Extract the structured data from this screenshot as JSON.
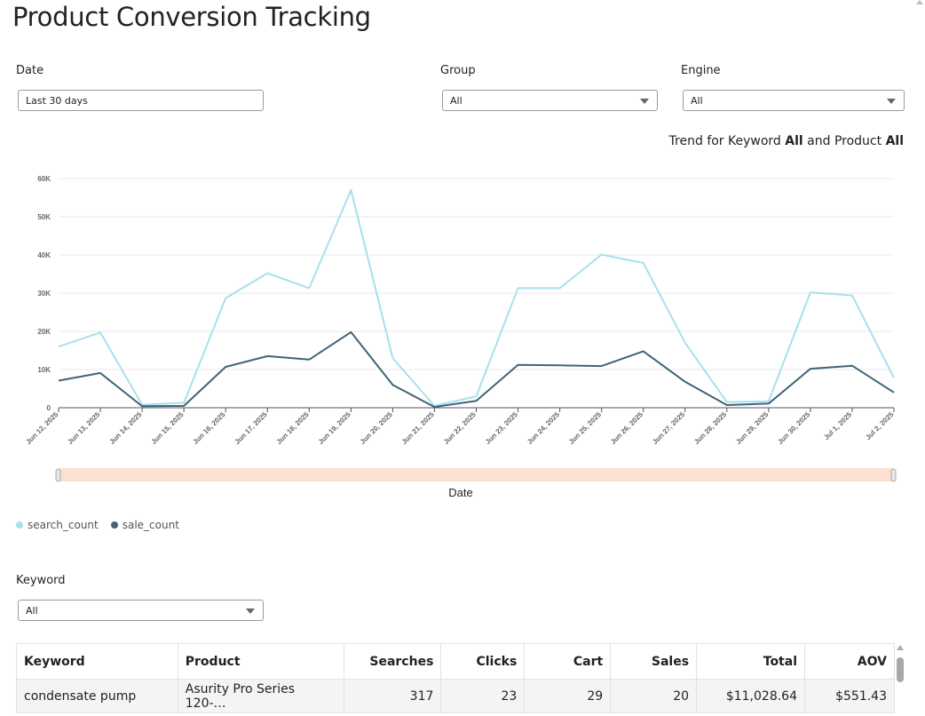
{
  "page": {
    "title": "Product Conversion Tracking"
  },
  "filters": {
    "date": {
      "label": "Date",
      "value": "Last 30 days"
    },
    "group": {
      "label": "Group",
      "value": "All"
    },
    "engine": {
      "label": "Engine",
      "value": "All"
    },
    "keyword": {
      "label": "Keyword",
      "value": "All"
    }
  },
  "trend": {
    "prefix": "Trend for Keyword ",
    "keyword": "All",
    "middle": " and Product ",
    "product": "All"
  },
  "chart_data": {
    "type": "line",
    "xlabel": "Date",
    "ylabel": "",
    "ylim": [
      0,
      60000
    ],
    "yticks": [
      0,
      10000,
      20000,
      30000,
      40000,
      50000,
      60000
    ],
    "ytick_labels": [
      "0",
      "10K",
      "20K",
      "30K",
      "40K",
      "50K",
      "60K"
    ],
    "grid": true,
    "legend": "bottom-left",
    "categories": [
      "Jun 12, 2025",
      "Jun 13, 2025",
      "Jun 14, 2025",
      "Jun 15, 2025",
      "Jun 16, 2025",
      "Jun 17, 2025",
      "Jun 18, 2025",
      "Jun 19, 2025",
      "Jun 20, 2025",
      "Jun 21, 2025",
      "Jun 22, 2025",
      "Jun 23, 2025",
      "Jun 24, 2025",
      "Jun 25, 2025",
      "Jun 26, 2025",
      "Jun 27, 2025",
      "Jun 28, 2025",
      "Jun 29, 2025",
      "Jun 30, 2025",
      "Jul 1, 2025",
      "Jul 2, 2025"
    ],
    "series": [
      {
        "name": "search_count",
        "color": "#a8e0ec",
        "values": [
          16000,
          19700,
          800,
          1300,
          28700,
          35200,
          31300,
          57000,
          13000,
          500,
          3000,
          31300,
          31300,
          40100,
          37900,
          17000,
          1500,
          1700,
          30200,
          29400,
          7800
        ]
      },
      {
        "name": "sale_count",
        "color": "#3f6476",
        "values": [
          7100,
          9100,
          400,
          500,
          10700,
          13500,
          12600,
          19800,
          6000,
          200,
          1800,
          11200,
          11100,
          10900,
          14800,
          6800,
          700,
          1100,
          10200,
          11000,
          4000
        ]
      }
    ]
  },
  "table": {
    "columns": [
      "Keyword",
      "Product",
      "Searches",
      "Clicks",
      "Cart",
      "Sales",
      "Total",
      "AOV"
    ],
    "rows": [
      [
        "condensate pump",
        "Asurity Pro Series 120-…",
        "317",
        "23",
        "29",
        "20",
        "$11,028.64",
        "$551.43"
      ]
    ]
  }
}
